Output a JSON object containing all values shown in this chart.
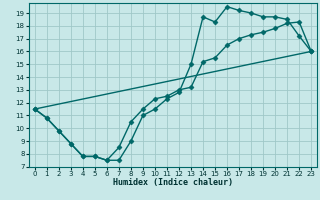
{
  "xlabel": "Humidex (Indice chaleur)",
  "background_color": "#c8e8e8",
  "grid_color": "#a0c8c8",
  "line_color": "#006868",
  "xlim": [
    -0.5,
    23.5
  ],
  "ylim": [
    7,
    19.8
  ],
  "yticks": [
    7,
    8,
    9,
    10,
    11,
    12,
    13,
    14,
    15,
    16,
    17,
    18,
    19
  ],
  "xticks": [
    0,
    1,
    2,
    3,
    4,
    5,
    6,
    7,
    8,
    9,
    10,
    11,
    12,
    13,
    14,
    15,
    16,
    17,
    18,
    19,
    20,
    21,
    22,
    23
  ],
  "line1_x": [
    0,
    1,
    2,
    3,
    4,
    5,
    6,
    7,
    8,
    9,
    10,
    11,
    12,
    13,
    14,
    15,
    16,
    17,
    18,
    19,
    20,
    21,
    22,
    23
  ],
  "line1_y": [
    11.5,
    10.8,
    9.8,
    8.8,
    7.8,
    7.8,
    7.5,
    7.5,
    9.0,
    11.0,
    11.5,
    12.3,
    12.8,
    15.0,
    18.7,
    18.3,
    19.5,
    19.2,
    19.0,
    18.7,
    18.7,
    18.5,
    17.2,
    16.0
  ],
  "line2_x": [
    0,
    1,
    2,
    3,
    4,
    5,
    6,
    7,
    8,
    9,
    10,
    11,
    12,
    13,
    14,
    15,
    16,
    17,
    18,
    19,
    20,
    21,
    22,
    23
  ],
  "line2_y": [
    11.5,
    10.8,
    9.8,
    8.8,
    7.8,
    7.8,
    7.5,
    8.5,
    10.5,
    11.5,
    12.3,
    12.5,
    13.0,
    13.2,
    15.2,
    15.5,
    16.5,
    17.0,
    17.3,
    17.5,
    17.8,
    18.2,
    18.3,
    16.0
  ],
  "line3_x": [
    0,
    23
  ],
  "line3_y": [
    11.5,
    16.0
  ],
  "marker_size": 2.5,
  "linewidth": 1.0,
  "tick_fontsize": 5,
  "xlabel_fontsize": 6
}
